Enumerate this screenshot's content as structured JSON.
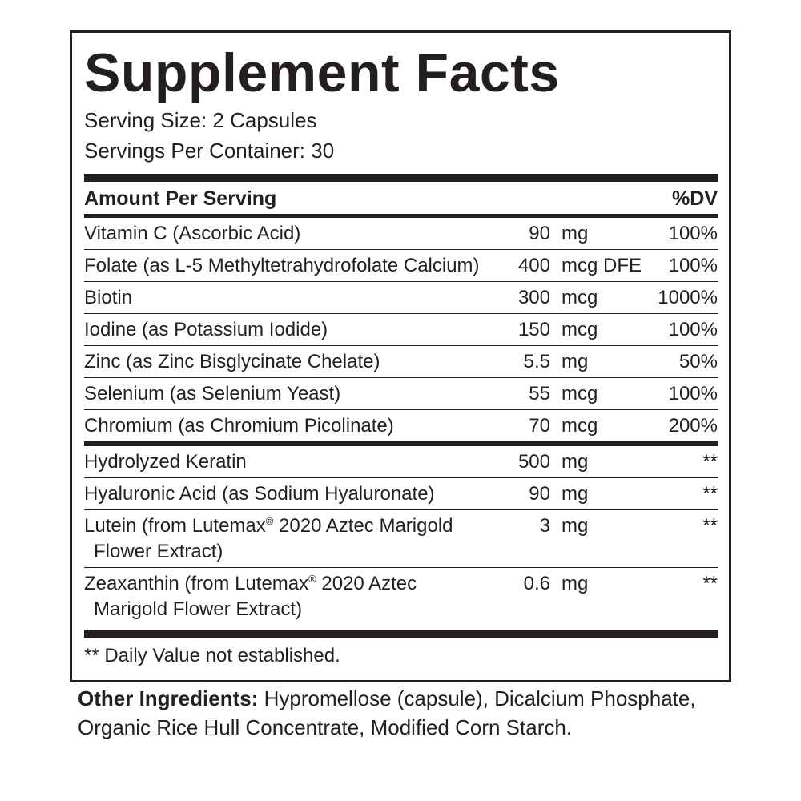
{
  "title": "Supplement Facts",
  "serving_size": "Serving Size: 2 Capsules",
  "servings_per_container": "Servings Per Container: 30",
  "header": {
    "amount": "Amount Per Serving",
    "dv": "%DV"
  },
  "vitamins": [
    {
      "name": "Vitamin C (Ascorbic Acid)",
      "amount": "90",
      "unit": "mg",
      "dv": "100%"
    },
    {
      "name": "Folate (as L-5 Methyltetrahydrofolate Calcium)",
      "amount": "400",
      "unit": "mcg DFE",
      "dv": "100%"
    },
    {
      "name": "Biotin",
      "amount": "300",
      "unit": "mcg",
      "dv": "1000%"
    },
    {
      "name": "Iodine (as Potassium Iodide)",
      "amount": "150",
      "unit": "mcg",
      "dv": "100%"
    },
    {
      "name": "Zinc (as Zinc Bisglycinate Chelate)",
      "amount": "5.5",
      "unit": "mg",
      "dv": "50%"
    },
    {
      "name": "Selenium (as Selenium Yeast)",
      "amount": "55",
      "unit": "mcg",
      "dv": "100%"
    },
    {
      "name": "Chromium (as Chromium Picolinate)",
      "amount": "70",
      "unit": "mcg",
      "dv": "200%"
    }
  ],
  "others": [
    {
      "name": "Hydrolyzed Keratin",
      "amount": "500",
      "unit": "mg",
      "dv": "**"
    },
    {
      "name": "Hyaluronic Acid (as Sodium Hyaluronate)",
      "amount": "90",
      "unit": "mg",
      "dv": "**"
    },
    {
      "name_a": "Lutein (from Lutemax",
      "reg": "®",
      "name_b": " 2020 Aztec Marigold",
      "name_c": "Flower Extract)",
      "amount": "3",
      "unit": "mg",
      "dv": "**"
    },
    {
      "name_a": "Zeaxanthin (from Lutemax",
      "reg": "®",
      "name_b": " 2020 Aztec",
      "name_c": "Marigold Flower Extract)",
      "amount": "0.6",
      "unit": "mg",
      "dv": "**"
    }
  ],
  "footnote": "** Daily Value not established.",
  "other_ingredients": {
    "label": "Other Ingredients:",
    "text": " Hypromellose (capsule), Dicalcium Phosphate, Organic Rice Hull Concentrate, Modified Corn Starch."
  }
}
